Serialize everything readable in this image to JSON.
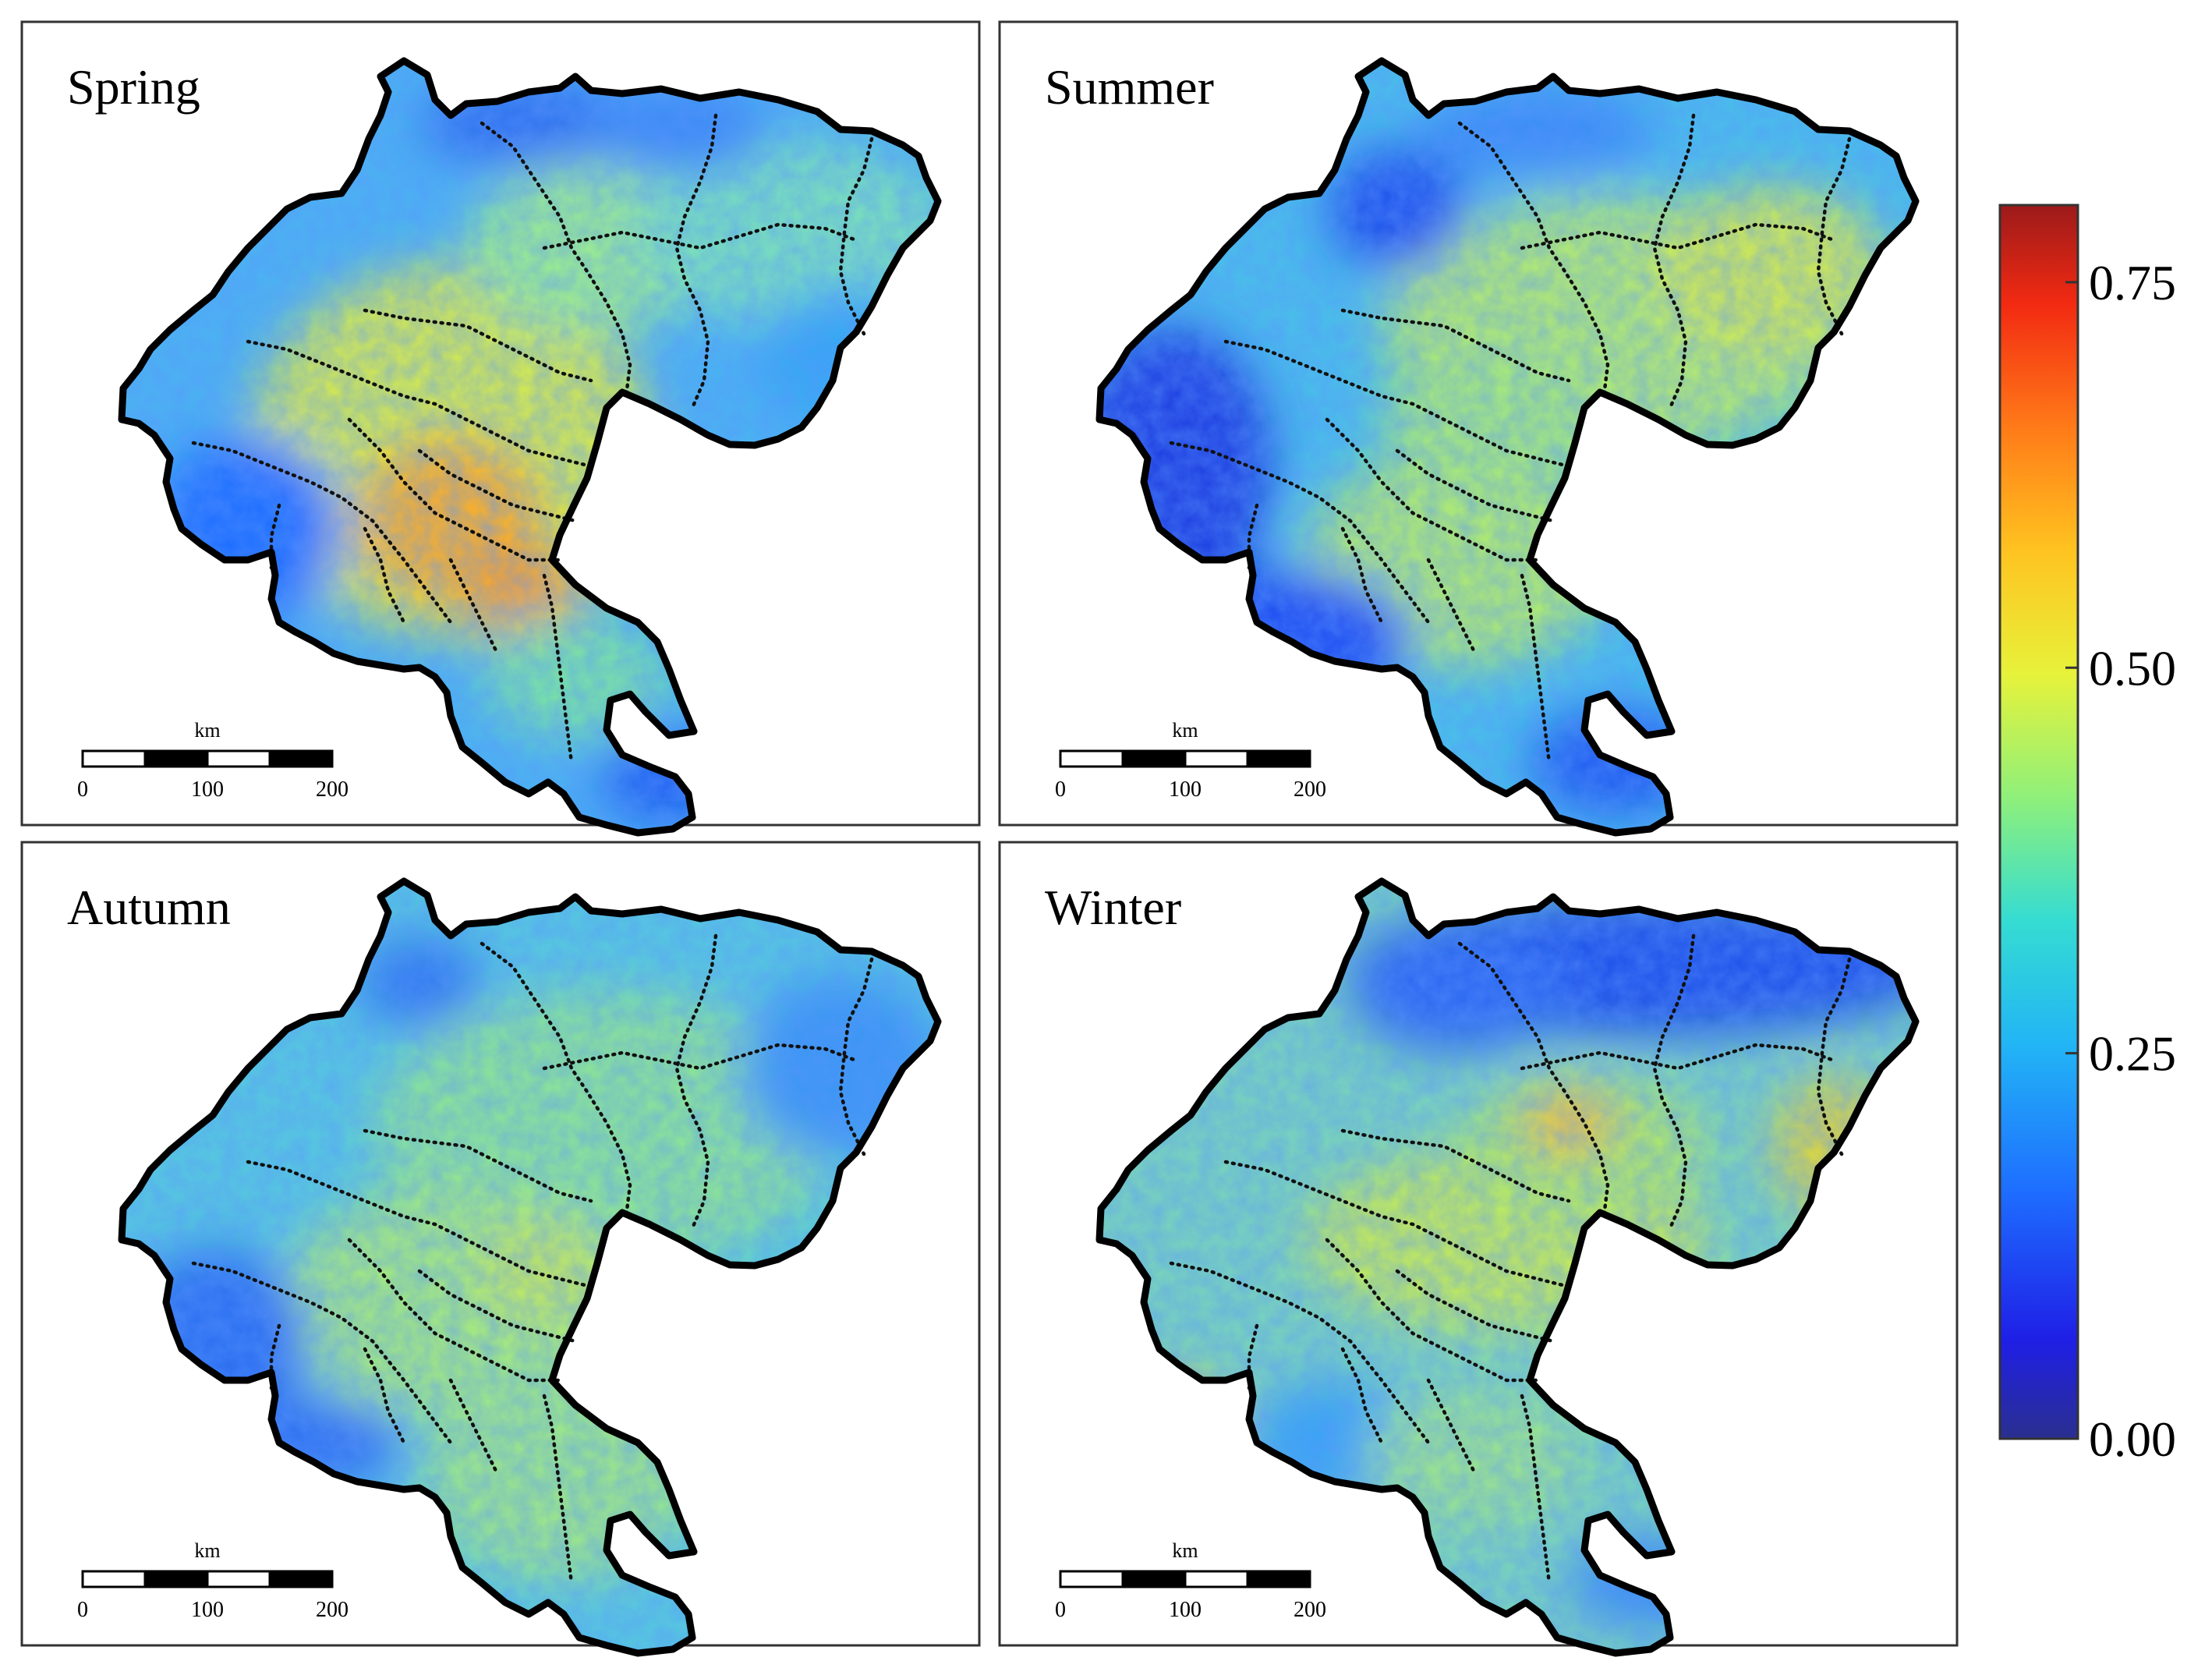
{
  "panels": [
    {
      "label": "Spring",
      "theme": "spring"
    },
    {
      "label": "Summer",
      "theme": "summer"
    },
    {
      "label": "Autumn",
      "theme": "autumn"
    },
    {
      "label": "Winter",
      "theme": "winter"
    }
  ],
  "scale_bar": {
    "unit": "km",
    "ticks": [
      "0",
      "100",
      "200"
    ],
    "max_km": 200,
    "segments": 4
  },
  "colorbar": {
    "min": 0.0,
    "max": 0.8,
    "ticks": [
      {
        "value": 0.75,
        "label": "0.75"
      },
      {
        "value": 0.5,
        "label": "0.50"
      },
      {
        "value": 0.25,
        "label": "0.25"
      },
      {
        "value": 0.0,
        "label": "0.00"
      }
    ],
    "colormap": "jet"
  }
}
